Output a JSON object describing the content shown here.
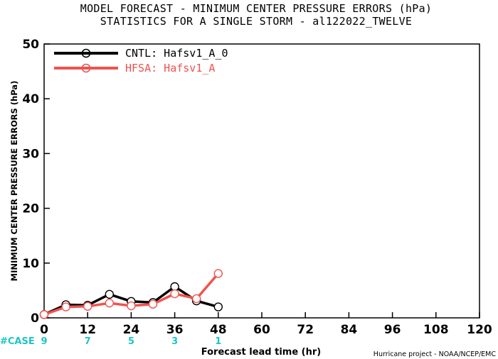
{
  "title_lines": [
    "MODEL FORECAST - MINIMUM CENTER PRESSURE ERRORS (hPa)",
    "STATISTICS FOR A SINGLE STORM - al122022_TWELVE"
  ],
  "credit": "Hurricane project - NOAA/NCEP/EMC",
  "case_label": "#CASE",
  "chart_data": {
    "type": "line",
    "title": "MODEL FORECAST - MINIMUM CENTER PRESSURE ERRORS (hPa)",
    "subtitle": "STATISTICS FOR A SINGLE STORM - al122022_TWELVE",
    "xlabel": "Forecast lead time (hr)",
    "ylabel": "MINIMUM CENTER PRESSURE ERRORS (hPa)",
    "xlim": [
      0,
      120
    ],
    "ylim": [
      0,
      50
    ],
    "xticks": [
      0,
      12,
      24,
      36,
      48,
      60,
      72,
      84,
      96,
      108,
      120
    ],
    "yticks": [
      0,
      10,
      20,
      30,
      40,
      50
    ],
    "grid": false,
    "legend_position": "top-left",
    "series": [
      {
        "name": "CNTL: Hafsv1_A_0",
        "color": "#000000",
        "x": [
          0,
          6,
          12,
          18,
          24,
          30,
          36,
          42,
          48
        ],
        "y": [
          0.6,
          2.4,
          2.3,
          4.3,
          3.0,
          2.8,
          5.7,
          3.1,
          2.0
        ]
      },
      {
        "name": "HFSA: Hafsv1_A",
        "color": "#f0524f",
        "x": [
          0,
          6,
          12,
          18,
          24,
          30,
          36,
          42,
          48
        ],
        "y": [
          0.6,
          2.0,
          2.1,
          2.7,
          2.2,
          2.5,
          4.4,
          3.5,
          8.1
        ]
      }
    ],
    "case_counts": {
      "x": [
        0,
        12,
        24,
        36,
        48
      ],
      "counts": [
        "9",
        "7",
        "5",
        "3",
        "1"
      ]
    }
  }
}
